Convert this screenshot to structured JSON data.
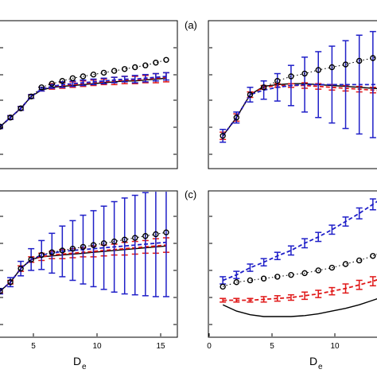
{
  "figure": {
    "panel_labels": [
      "(a)",
      "(c)"
    ],
    "xlabel_main": "D",
    "xlabel_sub": "e"
  },
  "chart_data": [
    {
      "type": "line",
      "panel": "top-left",
      "xlim": [
        0,
        17
      ],
      "ylim": [
        0,
        1.6
      ],
      "xticks": [],
      "series": [
        {
          "style": "black dotted line with open circles",
          "x": [
            0,
            1,
            2,
            3,
            4,
            5,
            6,
            7,
            8,
            9,
            10,
            11,
            12,
            13,
            14,
            15,
            16
          ],
          "y": [
            0.45,
            0.55,
            0.65,
            0.78,
            0.88,
            0.92,
            0.95,
            0.98,
            1.0,
            1.02,
            1.04,
            1.06,
            1.08,
            1.1,
            1.12,
            1.15,
            1.18
          ]
        },
        {
          "style": "blue dashed with error bars",
          "x": [
            0,
            1,
            2,
            3,
            4,
            5,
            6,
            7,
            8,
            9,
            10,
            11,
            12,
            13,
            14,
            15,
            16
          ],
          "y": [
            0.45,
            0.55,
            0.65,
            0.78,
            0.86,
            0.89,
            0.91,
            0.92,
            0.93,
            0.94,
            0.95,
            0.96,
            0.97,
            0.97,
            0.98,
            0.99,
            1.0
          ],
          "err": [
            0.02,
            0.02,
            0.02,
            0.02,
            0.02,
            0.02,
            0.03,
            0.03,
            0.03,
            0.03,
            0.03,
            0.03,
            0.03,
            0.04,
            0.04,
            0.04,
            0.04
          ]
        },
        {
          "style": "red dashed with error bars",
          "x": [
            0,
            1,
            2,
            3,
            4,
            5,
            6,
            7,
            8,
            9,
            10,
            11,
            12,
            13,
            14,
            15,
            16
          ],
          "y": [
            0.45,
            0.55,
            0.65,
            0.78,
            0.86,
            0.89,
            0.9,
            0.91,
            0.92,
            0.93,
            0.94,
            0.95,
            0.96,
            0.96,
            0.97,
            0.98,
            0.99
          ],
          "err": [
            0.02,
            0.02,
            0.02,
            0.02,
            0.02,
            0.03,
            0.03,
            0.03,
            0.03,
            0.03,
            0.03,
            0.04,
            0.04,
            0.04,
            0.04,
            0.05,
            0.05
          ]
        },
        {
          "style": "black solid line",
          "x": [
            0,
            1,
            2,
            3,
            4,
            5,
            6,
            7,
            8,
            9,
            10,
            11,
            12,
            13,
            14,
            15,
            16
          ],
          "y": [
            0.45,
            0.55,
            0.65,
            0.78,
            0.85,
            0.88,
            0.89,
            0.9,
            0.91,
            0.92,
            0.93,
            0.94,
            0.95,
            0.95,
            0.96,
            0.97,
            0.98
          ]
        }
      ]
    },
    {
      "type": "line",
      "panel": "top-right",
      "xlim": [
        0,
        13
      ],
      "ylim": [
        0,
        1.6
      ],
      "xticks": [],
      "series": [
        {
          "style": "black dotted line with open circles",
          "x": [
            1,
            2,
            3,
            4,
            5,
            6,
            7,
            8,
            9,
            10,
            11,
            12,
            13
          ],
          "y": [
            0.35,
            0.55,
            0.8,
            0.88,
            0.95,
            1.0,
            1.03,
            1.07,
            1.1,
            1.13,
            1.17,
            1.2,
            1.23
          ]
        },
        {
          "style": "blue dashed with error bars",
          "x": [
            1,
            2,
            3,
            4,
            5,
            6,
            7,
            8,
            9,
            10,
            11,
            12,
            13
          ],
          "y": [
            0.35,
            0.55,
            0.8,
            0.85,
            0.88,
            0.9,
            0.91,
            0.91,
            0.91,
            0.91,
            0.91,
            0.91,
            0.92
          ],
          "err": [
            0.07,
            0.06,
            0.08,
            0.1,
            0.15,
            0.22,
            0.3,
            0.36,
            0.42,
            0.48,
            0.54,
            0.58,
            0.62
          ]
        },
        {
          "style": "red dashed with error bars",
          "x": [
            1,
            2,
            3,
            4,
            5,
            6,
            7,
            8,
            9,
            10,
            11,
            12,
            13
          ],
          "y": [
            0.35,
            0.55,
            0.8,
            0.88,
            0.9,
            0.9,
            0.9,
            0.89,
            0.88,
            0.87,
            0.86,
            0.85,
            0.84
          ],
          "err": [
            0.04,
            0.04,
            0.03,
            0.02,
            0.02,
            0.02,
            0.03,
            0.03,
            0.03,
            0.03,
            0.03,
            0.03,
            0.04
          ]
        },
        {
          "style": "black solid line",
          "x": [
            1,
            2,
            3,
            4,
            5,
            6,
            7,
            8,
            9,
            10,
            11,
            12,
            13
          ],
          "y": [
            0.35,
            0.55,
            0.8,
            0.89,
            0.91,
            0.92,
            0.92,
            0.91,
            0.9,
            0.89,
            0.88,
            0.87,
            0.86
          ]
        }
      ]
    },
    {
      "type": "line",
      "panel": "bottom-left",
      "xlim": [
        0,
        17
      ],
      "ylim": [
        0,
        1.6
      ],
      "xticks": [
        "5",
        "10",
        "15"
      ],
      "series": [
        {
          "style": "black dotted line with open circles",
          "x": [
            0,
            1,
            2,
            3,
            4,
            5,
            6,
            7,
            8,
            9,
            10,
            11,
            12,
            13,
            14,
            15,
            16
          ],
          "y": [
            0.5,
            0.6,
            0.75,
            0.85,
            0.9,
            0.93,
            0.95,
            0.97,
            0.99,
            1.01,
            1.03,
            1.05,
            1.07,
            1.09,
            1.11,
            1.13,
            1.15
          ]
        },
        {
          "style": "blue dashed with error bars",
          "x": [
            0,
            1,
            2,
            3,
            4,
            5,
            6,
            7,
            8,
            9,
            10,
            11,
            12,
            13,
            14,
            15,
            16
          ],
          "y": [
            0.5,
            0.6,
            0.75,
            0.85,
            0.9,
            0.92,
            0.94,
            0.95,
            0.96,
            0.97,
            0.98,
            0.99,
            1.0,
            1.01,
            1.02,
            1.03,
            1.04
          ],
          "err": [
            0.03,
            0.05,
            0.08,
            0.12,
            0.16,
            0.22,
            0.28,
            0.33,
            0.38,
            0.42,
            0.46,
            0.5,
            0.53,
            0.55,
            0.57,
            0.59,
            0.6
          ]
        },
        {
          "style": "red dashed with error bars",
          "x": [
            0,
            1,
            2,
            3,
            4,
            5,
            6,
            7,
            8,
            9,
            10,
            11,
            12,
            13,
            14,
            15,
            16
          ],
          "y": [
            0.5,
            0.6,
            0.75,
            0.85,
            0.88,
            0.9,
            0.91,
            0.92,
            0.93,
            0.94,
            0.95,
            0.96,
            0.97,
            0.98,
            0.99,
            1.0,
            1.01
          ],
          "err": [
            0.02,
            0.02,
            0.03,
            0.03,
            0.04,
            0.04,
            0.05,
            0.05,
            0.05,
            0.06,
            0.06,
            0.06,
            0.07,
            0.07,
            0.07,
            0.08,
            0.08
          ]
        },
        {
          "style": "black solid line",
          "x": [
            0,
            1,
            2,
            3,
            4,
            5,
            6,
            7,
            8,
            9,
            10,
            11,
            12,
            13,
            14,
            15,
            16
          ],
          "y": [
            0.5,
            0.6,
            0.75,
            0.85,
            0.88,
            0.89,
            0.9,
            0.91,
            0.92,
            0.93,
            0.94,
            0.95,
            0.96,
            0.97,
            0.98,
            0.99,
            1.0
          ]
        }
      ]
    },
    {
      "type": "line",
      "panel": "bottom-right",
      "xlim": [
        0,
        13
      ],
      "ylim": [
        0,
        1.6
      ],
      "xticks": [
        "0",
        "5",
        "10"
      ],
      "series": [
        {
          "style": "black dotted line with open circles",
          "x": [
            1,
            2,
            3,
            4,
            5,
            6,
            7,
            8,
            9,
            10,
            11,
            12,
            13
          ],
          "y": [
            0.55,
            0.6,
            0.62,
            0.64,
            0.66,
            0.68,
            0.7,
            0.73,
            0.76,
            0.8,
            0.84,
            0.89,
            0.95
          ]
        },
        {
          "style": "blue dashed with error bars",
          "x": [
            1,
            2,
            3,
            4,
            5,
            6,
            7,
            8,
            9,
            10,
            11,
            12,
            13
          ],
          "y": [
            0.62,
            0.68,
            0.76,
            0.82,
            0.89,
            0.95,
            1.03,
            1.1,
            1.18,
            1.27,
            1.36,
            1.46,
            1.56
          ],
          "err": [
            0.04,
            0.04,
            0.04,
            0.04,
            0.04,
            0.05,
            0.05,
            0.05,
            0.05,
            0.05,
            0.06,
            0.06,
            0.06
          ]
        },
        {
          "style": "red dashed with error bars",
          "x": [
            1,
            2,
            3,
            4,
            5,
            6,
            7,
            8,
            9,
            10,
            11,
            12,
            13
          ],
          "y": [
            0.4,
            0.4,
            0.4,
            0.41,
            0.42,
            0.43,
            0.45,
            0.47,
            0.5,
            0.53,
            0.57,
            0.61,
            0.66
          ],
          "err": [
            0.02,
            0.02,
            0.02,
            0.03,
            0.03,
            0.03,
            0.04,
            0.04,
            0.04,
            0.05,
            0.05,
            0.05,
            0.06
          ]
        },
        {
          "style": "black solid line",
          "x": [
            1,
            2,
            3,
            4,
            5,
            6,
            7,
            8,
            9,
            10,
            11,
            12,
            13
          ],
          "y": [
            0.35,
            0.28,
            0.24,
            0.22,
            0.22,
            0.22,
            0.23,
            0.25,
            0.28,
            0.31,
            0.35,
            0.4,
            0.45
          ]
        }
      ]
    }
  ]
}
